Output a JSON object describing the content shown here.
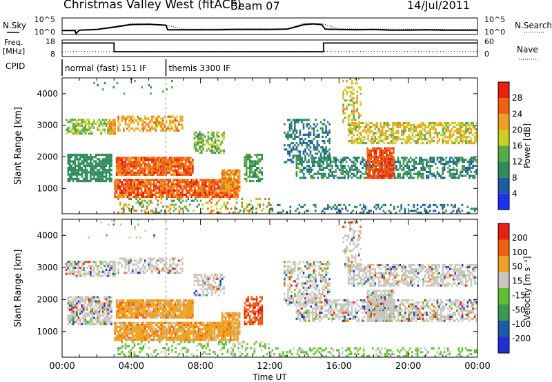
{
  "header": {
    "radar": "Christmas Valley West (fitACF)",
    "beam": "Beam 07",
    "date": "14/Jul/2011"
  },
  "chart_data": [
    {
      "type": "line",
      "name": "noise-panel",
      "left_label": "N.Sky",
      "right_label": "N.Search",
      "yticks_left": [
        "10^5",
        "10^0"
      ],
      "yticks_right": [
        "10^5",
        "10^0"
      ],
      "series": [
        {
          "name": "N.Sky",
          "style": "solid",
          "x": [
            0,
            0.75,
            0.8,
            1,
            2,
            3,
            4,
            5,
            6,
            6.1,
            7,
            8,
            9,
            10,
            11,
            12,
            13,
            13.5,
            14,
            14.5,
            15,
            15.2,
            16,
            17,
            18,
            19,
            20,
            21,
            22,
            23,
            24
          ],
          "y": [
            1.2,
            1.2,
            0.3,
            1.3,
            1.5,
            2.2,
            3.0,
            3.1,
            2.8,
            1.4,
            1.4,
            1.4,
            1.4,
            1.5,
            1.5,
            1.5,
            1.6,
            2.3,
            3.0,
            3.2,
            3.0,
            1.6,
            1.5,
            1.4,
            1.5,
            1.3,
            1.3,
            1.4,
            1.3,
            1.3,
            1.3
          ]
        },
        {
          "name": "N.Search",
          "style": "dotted",
          "x": [
            0,
            2,
            3,
            4,
            6,
            7,
            10,
            13,
            14,
            15,
            16,
            20,
            24
          ],
          "y": [
            1.3,
            1.6,
            2.4,
            3.3,
            2.9,
            1.6,
            1.7,
            1.7,
            3.4,
            3.3,
            1.7,
            1.6,
            1.5
          ]
        }
      ]
    },
    {
      "type": "line",
      "name": "freq-panel",
      "left_label": "Freq. [MHz]",
      "right_label": "Nave",
      "yticks_left": [
        "18",
        "8"
      ],
      "yticks_right": [
        "60",
        "0"
      ],
      "series": [
        {
          "name": "Freq.",
          "style": "solid",
          "x": [
            0,
            3.0,
            3.0,
            15.1,
            15.1,
            24
          ],
          "y": [
            16.8,
            16.8,
            10.5,
            10.5,
            16.8,
            16.8
          ]
        },
        {
          "name": "Nave",
          "style": "dotted",
          "x": [
            0,
            24
          ],
          "y": [
            18,
            18
          ]
        }
      ]
    },
    {
      "type": "table",
      "name": "cpid-bar",
      "label": "CPID",
      "segments": [
        {
          "text": "normal (fast) 151 IF",
          "start": 0.0,
          "end": 6.0
        },
        {
          "text": "themis 3300 IF",
          "start": 6.0,
          "end": 24.0
        }
      ]
    },
    {
      "type": "heatmap",
      "name": "power-panel",
      "ylabel": "Slant Range [km]",
      "yticks": [
        "1000",
        "2000",
        "3000",
        "4000"
      ],
      "colorbar_label": "Power [dB]",
      "colorbar_ticks": [
        "28",
        "24",
        "20",
        "16",
        "12",
        "8",
        "4"
      ],
      "colors": [
        "#2030f0",
        "#1f5aa8",
        "#2f8a5c",
        "#5aa84a",
        "#c8d020",
        "#f0a020",
        "#f06010",
        "#e82010"
      ],
      "ylim": [
        200,
        4500
      ],
      "xlim": [
        0,
        24
      ]
    },
    {
      "type": "heatmap",
      "name": "velocity-panel",
      "ylabel": "Slant Range [km]",
      "yticks": [
        "1000",
        "2000",
        "3000",
        "4000"
      ],
      "colorbar_label": "Velocity [m s^-1]",
      "colorbar_ticks": [
        "200",
        "100",
        "50",
        "15",
        "-15",
        "-50",
        "-100",
        "-200"
      ],
      "colors": [
        "#2030d0",
        "#1f5aa8",
        "#3a9a50",
        "#60c030",
        "#c8c8c0",
        "#f0a020",
        "#f06010",
        "#e82010"
      ],
      "ylim": [
        200,
        4500
      ],
      "xlim": [
        0,
        24
      ]
    }
  ],
  "xaxis": {
    "label": "Time UT",
    "ticks": [
      "00:00",
      "04:00",
      "08:00",
      "12:00",
      "16:00",
      "20:00",
      "00:00"
    ]
  }
}
